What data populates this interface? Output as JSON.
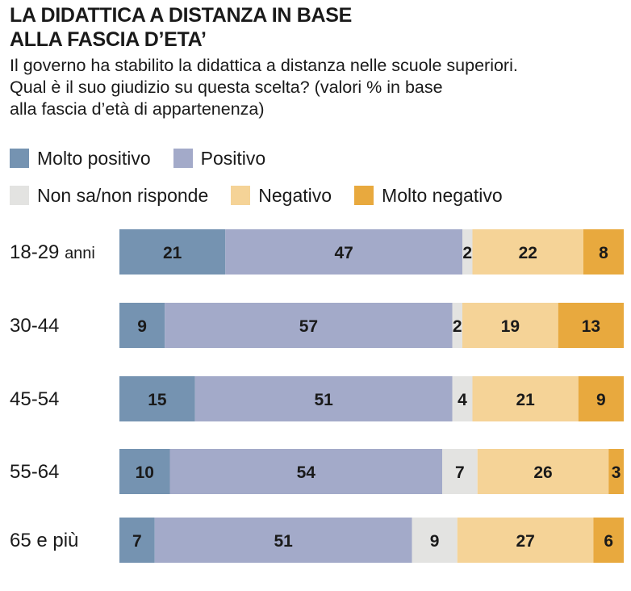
{
  "title_lines": [
    "LA DIDATTICA A DISTANZA IN BASE",
    "ALLA FASCIA D’ETA’"
  ],
  "subtitle_lines": [
    "Il governo ha stabilito la didattica a distanza nelle scuole superiori.",
    "Qual è il suo giudizio su questa scelta? (valori % in base",
    "alla fascia d’età di appartenenza)"
  ],
  "chart_data": {
    "type": "bar",
    "orientation": "horizontal",
    "stacked": true,
    "categories": [
      "18-29 anni",
      "30-44",
      "45-54",
      "55-64",
      "65 e più"
    ],
    "series": [
      {
        "name": "Molto positivo",
        "color": "#7593b1",
        "values": [
          21,
          9,
          15,
          10,
          7
        ]
      },
      {
        "name": "Positivo",
        "color": "#a3aac9",
        "values": [
          47,
          57,
          51,
          54,
          51
        ]
      },
      {
        "name": "Non sa/non risponde",
        "color": "#e3e3e1",
        "values": [
          2,
          2,
          4,
          7,
          9
        ]
      },
      {
        "name": "Negativo",
        "color": "#f5d397",
        "values": [
          22,
          19,
          21,
          26,
          27
        ]
      },
      {
        "name": "Molto negativo",
        "color": "#e8a93e",
        "values": [
          8,
          13,
          9,
          3,
          6
        ]
      }
    ],
    "legend_placement": "top",
    "grid": false
  }
}
